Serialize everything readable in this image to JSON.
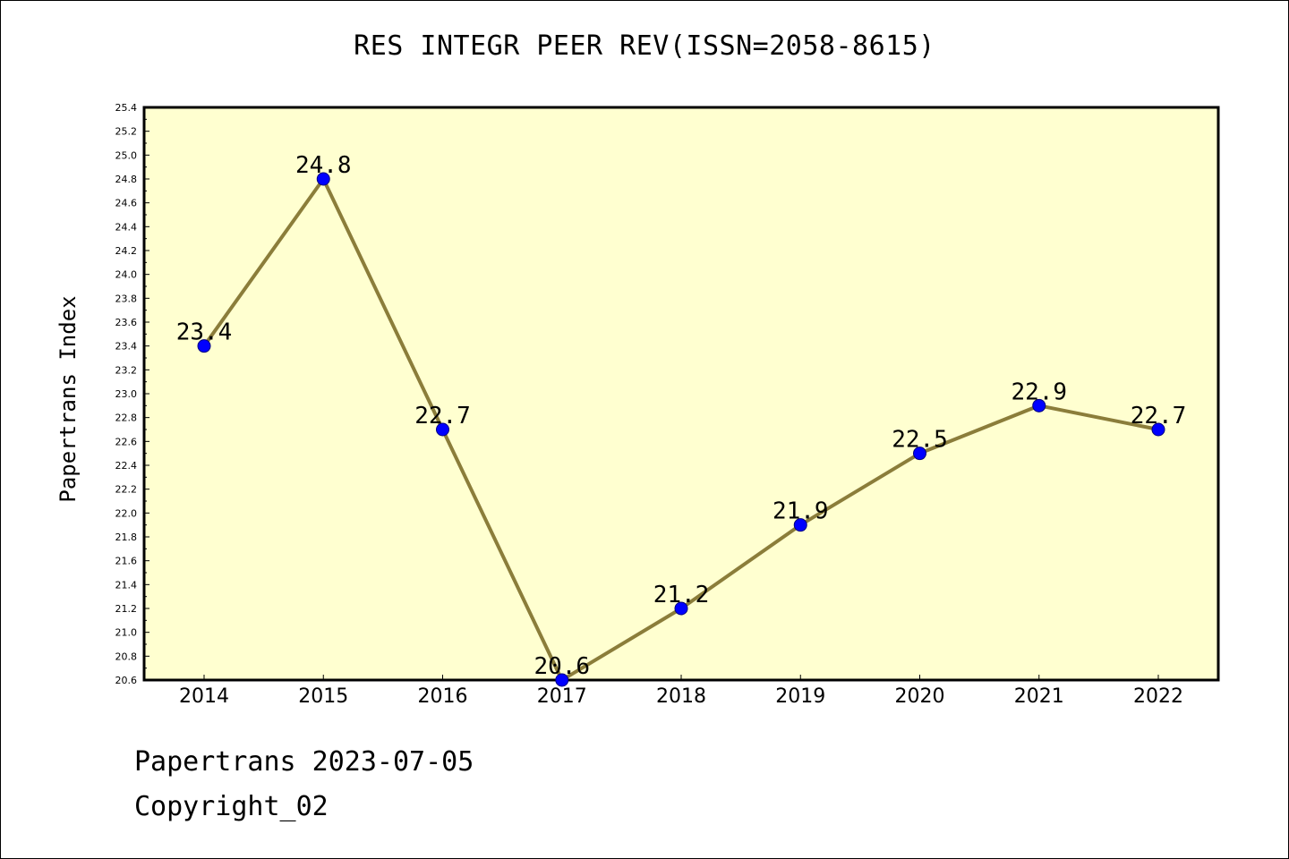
{
  "chart_data": {
    "type": "line",
    "title": "RES INTEGR PEER REV(ISSN=2058-8615)",
    "xlabel": "",
    "ylabel": "Papertrans Index",
    "categories": [
      "2014",
      "2015",
      "2016",
      "2017",
      "2018",
      "2019",
      "2020",
      "2021",
      "2022"
    ],
    "series": [
      {
        "values": [
          23.4,
          24.8,
          22.7,
          20.6,
          21.2,
          21.9,
          22.5,
          22.9,
          22.7
        ],
        "labels": [
          "23.4",
          "24.8",
          "22.7",
          "20.6",
          "21.2",
          "21.9",
          "22.5",
          "22.9",
          "22.7"
        ]
      }
    ],
    "ylim": [
      20.6,
      25.4
    ],
    "yticks": [
      "20.6",
      "20.8",
      "21.0",
      "21.2",
      "21.4",
      "21.6",
      "21.8",
      "22.0",
      "22.2",
      "22.4",
      "22.6",
      "22.8",
      "23.0",
      "23.2",
      "23.4",
      "23.6",
      "23.8",
      "24.0",
      "24.2",
      "24.4",
      "24.6",
      "24.8",
      "25.0",
      "25.2",
      "25.4"
    ],
    "grid": false,
    "legend": "none",
    "colors": {
      "plot_background": "#ffffd0",
      "line": "#8b7d3a",
      "marker": "#0000ff",
      "axis": "#000000"
    }
  },
  "footer": {
    "line1": "Papertrans 2023-07-05",
    "line2": "Copyright_02"
  }
}
